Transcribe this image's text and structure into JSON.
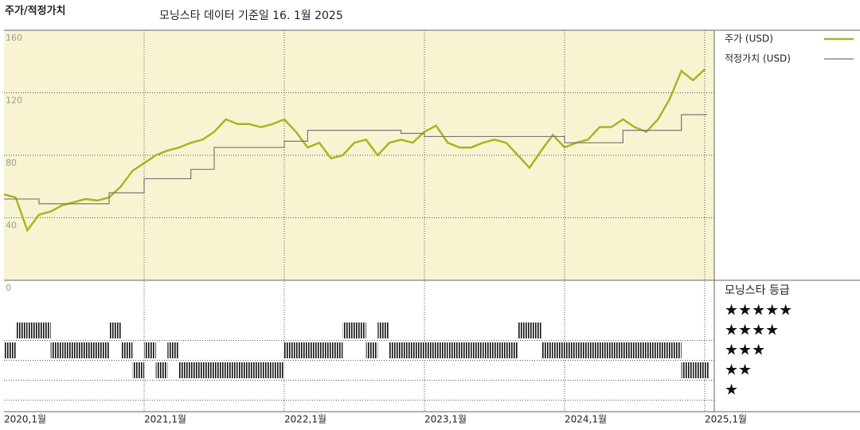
{
  "chart_data": {
    "type": "line",
    "title": "주가/적정가치",
    "subtitle": "모닝스타 데이터 기준일 16. 1월 2025",
    "x": [
      "2020-01",
      "2020-02",
      "2020-03",
      "2020-04",
      "2020-05",
      "2020-06",
      "2020-07",
      "2020-08",
      "2020-09",
      "2020-10",
      "2020-11",
      "2020-12",
      "2021-01",
      "2021-02",
      "2021-03",
      "2021-04",
      "2021-05",
      "2021-06",
      "2021-07",
      "2021-08",
      "2021-09",
      "2021-10",
      "2021-11",
      "2021-12",
      "2022-01",
      "2022-02",
      "2022-03",
      "2022-04",
      "2022-05",
      "2022-06",
      "2022-07",
      "2022-08",
      "2022-09",
      "2022-10",
      "2022-11",
      "2022-12",
      "2023-01",
      "2023-02",
      "2023-03",
      "2023-04",
      "2023-05",
      "2023-06",
      "2023-07",
      "2023-08",
      "2023-09",
      "2023-10",
      "2023-11",
      "2023-12",
      "2024-01",
      "2024-02",
      "2024-03",
      "2024-04",
      "2024-05",
      "2024-06",
      "2024-07",
      "2024-08",
      "2024-09",
      "2024-10",
      "2024-11",
      "2024-12",
      "2025-01"
    ],
    "xlim": [
      "2020-01",
      "2025-01"
    ],
    "xticks": [
      {
        "value": "2020-01",
        "label": "2020,1월"
      },
      {
        "value": "2021-01",
        "label": "2021,1월"
      },
      {
        "value": "2022-01",
        "label": "2022,1월"
      },
      {
        "value": "2023-01",
        "label": "2023,1월"
      },
      {
        "value": "2024-01",
        "label": "2024,1월"
      },
      {
        "value": "2025-01",
        "label": "2025,1월"
      }
    ],
    "ylim": [
      0,
      160
    ],
    "yticks": [
      0,
      40,
      80,
      120,
      160
    ],
    "series": [
      {
        "name": "주가 (USD)",
        "color": "#a9b521",
        "step": false,
        "values": [
          55,
          53,
          32,
          42,
          44,
          48,
          50,
          52,
          51,
          53,
          60,
          70,
          75,
          80,
          83,
          85,
          88,
          90,
          95,
          103,
          100,
          100,
          98,
          100,
          103,
          95,
          85,
          88,
          78,
          80,
          88,
          90,
          80,
          88,
          90,
          88,
          95,
          99,
          88,
          85,
          85,
          88,
          90,
          88,
          80,
          72,
          83,
          93,
          85,
          88,
          90,
          98,
          98,
          103,
          98,
          95,
          103,
          116,
          134,
          128,
          135
        ]
      },
      {
        "name": "적정가치 (USD)",
        "color": "#777777",
        "step": true,
        "values": [
          52,
          52,
          52,
          49,
          49,
          49,
          49,
          49,
          49,
          56,
          56,
          56,
          65,
          65,
          65,
          65,
          71,
          71,
          85,
          85,
          85,
          85,
          85,
          85,
          89,
          89,
          96,
          96,
          96,
          96,
          96,
          96,
          96,
          96,
          94,
          94,
          92,
          92,
          92,
          92,
          92,
          92,
          92,
          92,
          92,
          92,
          92,
          92,
          88,
          88,
          88,
          88,
          88,
          96,
          96,
          96,
          96,
          96,
          106,
          106,
          106
        ]
      }
    ],
    "rating": {
      "name": "모닝스타 등급",
      "color": "#111111",
      "values": [
        3,
        4,
        4,
        4,
        3,
        3,
        3,
        3,
        3,
        4,
        3,
        2,
        3,
        2,
        3,
        2,
        2,
        2,
        2,
        2,
        2,
        2,
        2,
        2,
        3,
        3,
        3,
        3,
        3,
        4,
        4,
        3,
        4,
        3,
        3,
        3,
        3,
        3,
        3,
        3,
        3,
        3,
        3,
        3,
        4,
        4,
        3,
        3,
        3,
        3,
        3,
        3,
        3,
        3,
        3,
        3,
        3,
        3,
        2,
        2,
        2
      ],
      "ticks": [
        {
          "value": 5,
          "label": "★★★★★"
        },
        {
          "value": 4,
          "label": "★★★★"
        },
        {
          "value": 3,
          "label": "★★★"
        },
        {
          "value": 2,
          "label": "★★"
        },
        {
          "value": 1,
          "label": "★"
        }
      ]
    },
    "grid": true
  }
}
